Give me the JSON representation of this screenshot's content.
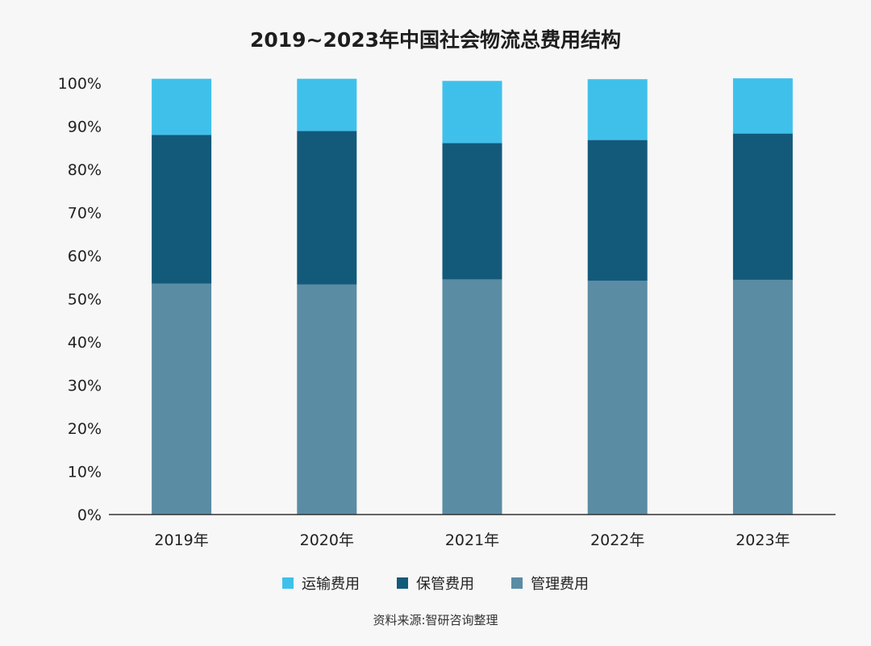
{
  "title": "2019~2023年中国社会物流总费用结构",
  "source": "资料来源:智研咨询整理",
  "colors": {
    "transport": "#3fc0eb",
    "storage": "#135a7a",
    "management": "#5a8ca4",
    "axis": "#333333"
  },
  "chart_data": {
    "type": "bar",
    "stacked": true,
    "title": "2019~2023年中国社会物流总费用结构",
    "categories": [
      "2019年",
      "2020年",
      "2021年",
      "2022年",
      "2023年"
    ],
    "series": [
      {
        "name": "管理费用",
        "color": "#5a8ca4",
        "values": [
          53.5,
          53.3,
          54.5,
          54.2,
          54.4
        ]
      },
      {
        "name": "保管费用",
        "color": "#135a7a",
        "values": [
          34.5,
          35.6,
          31.6,
          32.6,
          33.9
        ]
      },
      {
        "name": "运输费用",
        "color": "#3fc0eb",
        "values": [
          13.0,
          12.1,
          14.4,
          14.1,
          12.8
        ]
      }
    ],
    "ylim": [
      0,
      100
    ],
    "yticks": [
      "0%",
      "10%",
      "20%",
      "30%",
      "40%",
      "50%",
      "60%",
      "70%",
      "80%",
      "90%",
      "100%"
    ],
    "legend": [
      "运输费用",
      "保管费用",
      "管理费用"
    ],
    "legend_position": "bottom",
    "grid": false
  }
}
